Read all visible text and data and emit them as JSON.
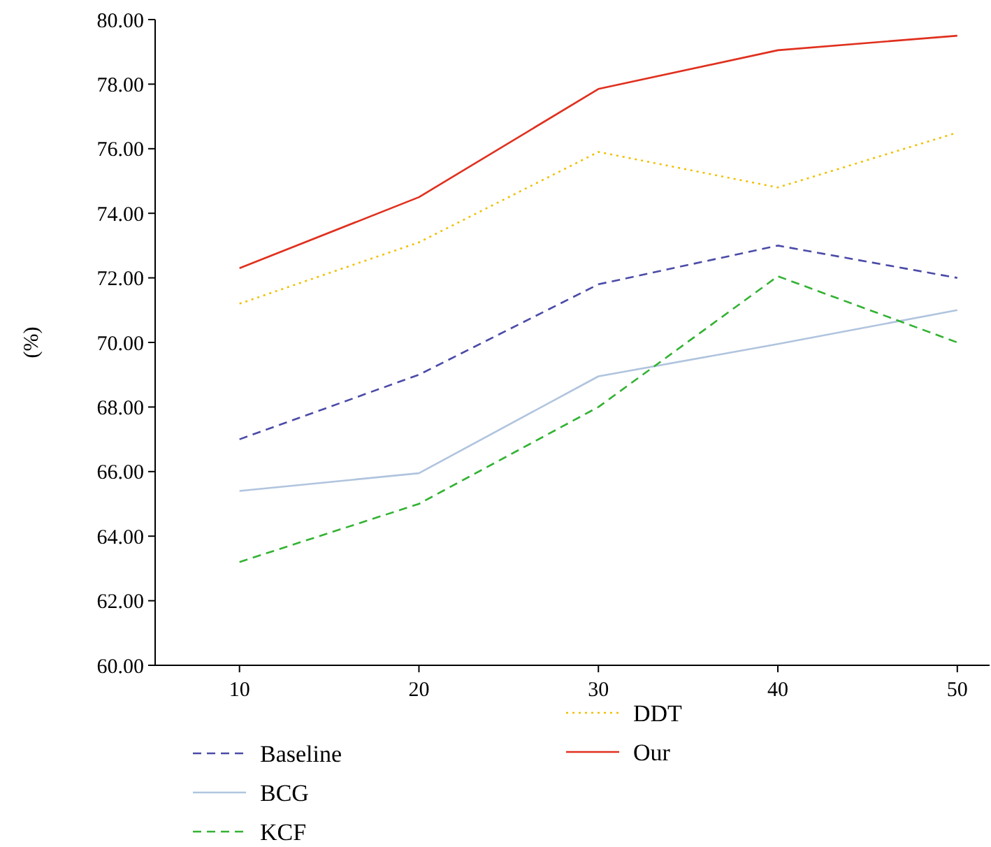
{
  "chart_data": {
    "type": "line",
    "ylabel": "(%)",
    "x": [
      10,
      20,
      30,
      40,
      50
    ],
    "xlim": [
      5.3,
      51.8
    ],
    "xticks": [
      10,
      20,
      30,
      40,
      50
    ],
    "ylim": [
      60,
      80
    ],
    "yticks": [
      {
        "value": 60,
        "label": "60.00"
      },
      {
        "value": 62,
        "label": "62.00"
      },
      {
        "value": 64,
        "label": "64.00"
      },
      {
        "value": 66,
        "label": "66.00"
      },
      {
        "value": 68,
        "label": "68.00"
      },
      {
        "value": 70,
        "label": "70.00"
      },
      {
        "value": 72,
        "label": "72.00"
      },
      {
        "value": 74,
        "label": "74.00"
      },
      {
        "value": 76,
        "label": "76.00"
      },
      {
        "value": 78,
        "label": "78.00"
      },
      {
        "value": 80,
        "label": "80.00"
      }
    ],
    "grid": false,
    "legend": "bottom",
    "marker": "none",
    "series": [
      {
        "name": "Baseline",
        "color": "#4b4ba8",
        "line_style": "dashed",
        "values": [
          67.0,
          69.0,
          71.8,
          73.0,
          72.0
        ]
      },
      {
        "name": "BCG",
        "color": "#b0c4de",
        "line_style": "solid",
        "values": [
          65.4,
          65.95,
          68.95,
          69.95,
          71.0
        ]
      },
      {
        "name": "KCF",
        "color": "#33b233",
        "line_style": "dashed",
        "values": [
          63.2,
          65.0,
          68.0,
          72.05,
          70.0
        ]
      },
      {
        "name": "DDT",
        "color": "#f0c000",
        "line_style": "dotted",
        "values": [
          71.2,
          73.1,
          75.9,
          74.8,
          76.5
        ]
      },
      {
        "name": "Our",
        "color": "#e0301e",
        "line_style": "solid",
        "values": [
          72.3,
          74.5,
          77.85,
          79.05,
          79.5
        ]
      }
    ]
  }
}
